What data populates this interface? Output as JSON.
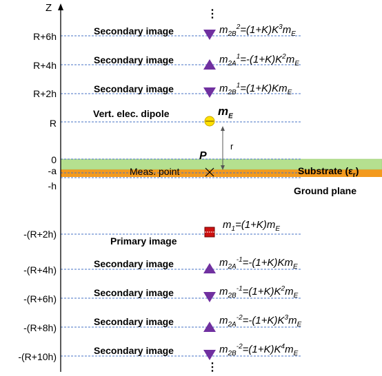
{
  "axis": {
    "title": "Z",
    "ticks": [
      "R+6h",
      "R+4h",
      "R+2h",
      "R",
      "0",
      "-a",
      "-h",
      "-(R+2h)",
      "-(R+4h)",
      "-(R+6h)",
      "-(R+8h)",
      "-(R+10h)"
    ]
  },
  "labels": {
    "secondary_image": "Secondary image",
    "primary_image": "Primary image",
    "dipole": "Vert. elec. dipole",
    "meas_point": "Meas. point",
    "point_p": "P",
    "distance_r": "r",
    "substrate": "Substrate (ε",
    "substrate_sub": "r",
    "substrate_close": ")",
    "ground_plane": "Ground plane",
    "vdots": "⋮"
  },
  "formulas": {
    "f1": {
      "m": "m",
      "sub": "2B",
      "sup": "2",
      "rhs": "=(1+K)K",
      "rhs_sup": "3",
      "tail": "m",
      "tail_sub": "E"
    },
    "f2": {
      "m": "m",
      "sub": "2A",
      "sup": "1",
      "rhs": "=-(1+K)K",
      "rhs_sup": "2",
      "tail": "m",
      "tail_sub": "E"
    },
    "f3": {
      "m": "m",
      "sub": "2B",
      "sup": "1",
      "rhs": "=(1+K)Km",
      "tail_sub": "E"
    },
    "fE": {
      "m": "m",
      "sub": "E"
    },
    "f4": {
      "m": "m",
      "sub": "1",
      "rhs": "=(1+K)m",
      "tail_sub": "E"
    },
    "f5": {
      "m": "m",
      "sub": "2A",
      "sup": "-1",
      "rhs": "=-(1+K)Km",
      "tail_sub": "E"
    },
    "f6": {
      "m": "m",
      "sub": "2B",
      "sup": "-1",
      "rhs": "=(1+K)K",
      "rhs_sup": "2",
      "tail": "m",
      "tail_sub": "E"
    },
    "f7": {
      "m": "m",
      "sub": "2A",
      "sup": "-2",
      "rhs": "=-(1+K)K",
      "rhs_sup": "3",
      "tail": "m",
      "tail_sub": "E"
    },
    "f8": {
      "m": "m",
      "sub": "2B",
      "sup": "-2",
      "rhs": "=(1+K)K",
      "rhs_sup": "4",
      "tail": "m",
      "tail_sub": "E"
    }
  },
  "colors": {
    "substrate": "#b5e08f",
    "ground": "#f39a1e",
    "dashed": "#4472c4",
    "triangle": "#7030a0",
    "primary": "#cc1111",
    "dipole": "#ffe000"
  }
}
